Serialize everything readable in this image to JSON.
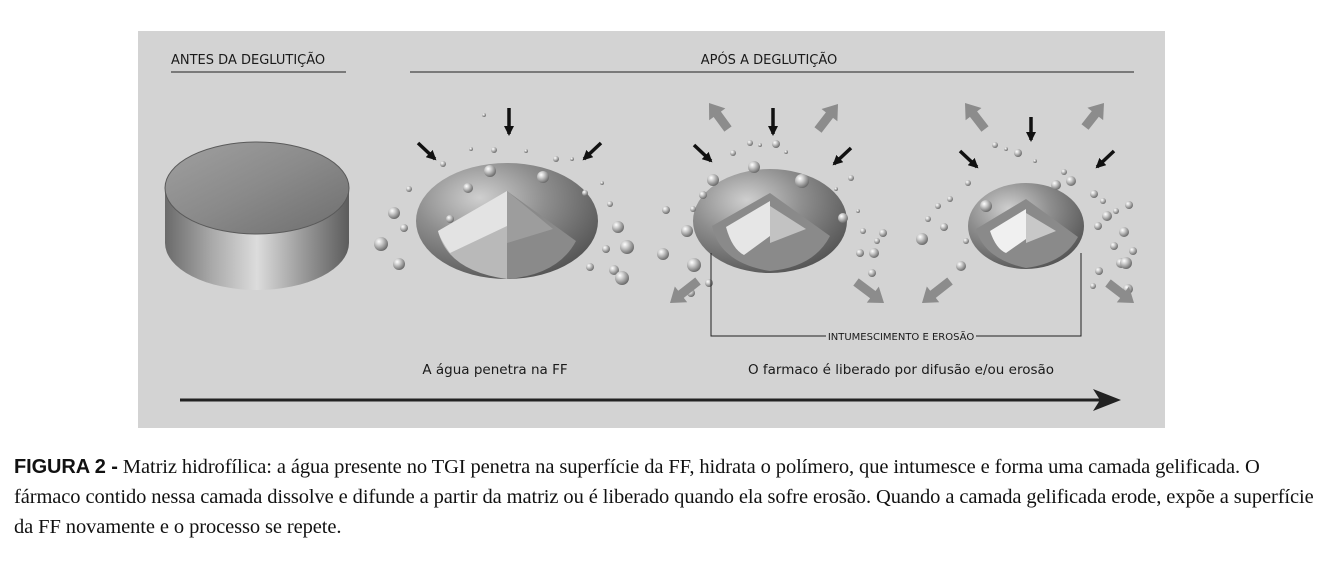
{
  "figure": {
    "before_heading": "ANTES DA DEGLUTIÇÃO",
    "after_heading": "APÓS A DEGLUTIÇÃO",
    "bracket_label": "INTUMESCIMENTO E EROSÃO",
    "water_label": "A água penetra na FF",
    "release_label": "O farmaco é liberado por difusão e/ou erosão"
  },
  "caption": {
    "label": "FIGURA 2 -",
    "text": " Matriz hidrofílica: a água presente no TGI penetra na superfície da FF, hidrata o polímero, que intumesce e forma uma camada gelificada. O fármaco contido nessa camada dissolve e difunde a partir da matriz ou é liberado quando ela sofre erosão. Quando a camada gelificada erode, expõe a superfície da FF novamente e o processo se repete."
  },
  "colors": {
    "panel_bg": "#d3d3d3",
    "black_arrow": "#111111",
    "release_arrow": "#8c8c8c"
  }
}
